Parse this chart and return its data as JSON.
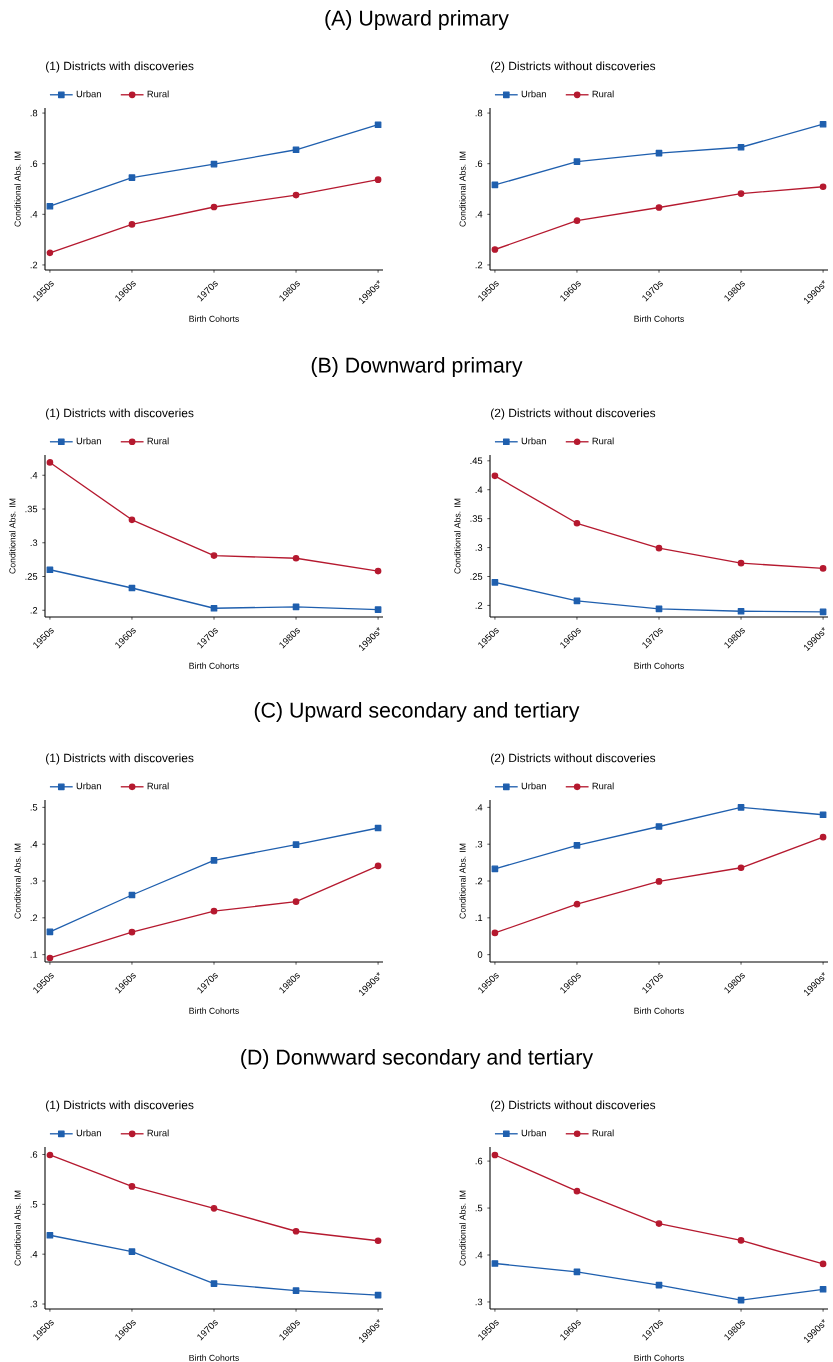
{
  "chart_data": [
    {
      "type": "line",
      "title": "(A) Upward primary",
      "subtitle": "(1) Districts with discoveries",
      "xlabel": "Birth Cohorts",
      "ylabel": "Conditional Abs. IM",
      "categories": [
        "1950s",
        "1960s",
        "1970s",
        "1980s",
        "1990s*"
      ],
      "legend": "top left",
      "ylim": [
        0.18,
        0.82
      ],
      "yticks": [
        {
          "value": 0.2,
          "label": ".2"
        },
        {
          "value": 0.4,
          "label": ".4"
        },
        {
          "value": 0.6,
          "label": ".6"
        },
        {
          "value": 0.8,
          "label": ".8"
        }
      ],
      "series": [
        {
          "name": "Urban",
          "color": "#1f5fae",
          "marker": "square",
          "values": [
            0.432,
            0.545,
            0.598,
            0.655,
            0.754
          ]
        },
        {
          "name": "Rural",
          "color": "#b5192f",
          "marker": "circle",
          "values": [
            0.248,
            0.36,
            0.429,
            0.476,
            0.537
          ]
        }
      ]
    },
    {
      "type": "line",
      "subtitle": "(2) Districts without discoveries",
      "xlabel": "Birth Cohorts",
      "ylabel": "Conditional Abs. IM",
      "categories": [
        "1950s",
        "1960s",
        "1970s",
        "1980s",
        "1990s*"
      ],
      "legend": "top left",
      "ylim": [
        0.18,
        0.82
      ],
      "yticks": [
        {
          "value": 0.2,
          "label": ".2"
        },
        {
          "value": 0.4,
          "label": ".4"
        },
        {
          "value": 0.6,
          "label": ".6"
        },
        {
          "value": 0.8,
          "label": ".8"
        }
      ],
      "series": [
        {
          "name": "Urban",
          "color": "#1f5fae",
          "marker": "square",
          "values": [
            0.516,
            0.608,
            0.642,
            0.665,
            0.756
          ]
        },
        {
          "name": "Rural",
          "color": "#b5192f",
          "marker": "circle",
          "values": [
            0.261,
            0.375,
            0.427,
            0.482,
            0.509
          ]
        }
      ]
    },
    {
      "type": "line",
      "title": "(B) Downward primary",
      "subtitle": "(1) Districts with discoveries",
      "xlabel": "Birth Cohorts",
      "ylabel": "Conditional Abs. IM",
      "categories": [
        "1950s",
        "1960s",
        "1970s",
        "1980s",
        "1990s*"
      ],
      "legend": "top left",
      "ylim": [
        0.19,
        0.43
      ],
      "yticks": [
        {
          "value": 0.2,
          "label": ".2"
        },
        {
          "value": 0.25,
          "label": ".25"
        },
        {
          "value": 0.3,
          "label": ".3"
        },
        {
          "value": 0.35,
          "label": ".35"
        },
        {
          "value": 0.4,
          "label": ".4"
        }
      ],
      "series": [
        {
          "name": "Urban",
          "color": "#1f5fae",
          "marker": "square",
          "values": [
            0.26,
            0.233,
            0.203,
            0.205,
            0.201
          ]
        },
        {
          "name": "Rural",
          "color": "#b5192f",
          "marker": "circle",
          "values": [
            0.419,
            0.334,
            0.281,
            0.277,
            0.258
          ]
        }
      ]
    },
    {
      "type": "line",
      "subtitle": "(2) Districts without discoveries",
      "xlabel": "Birth Cohorts",
      "ylabel": "Conditional Abs. IM",
      "categories": [
        "1950s",
        "1960s",
        "1970s",
        "1980s",
        "1990s*"
      ],
      "legend": "top left",
      "ylim": [
        0.18,
        0.46
      ],
      "yticks": [
        {
          "value": 0.2,
          "label": ".2"
        },
        {
          "value": 0.25,
          "label": ".25"
        },
        {
          "value": 0.3,
          "label": ".3"
        },
        {
          "value": 0.35,
          "label": ".35"
        },
        {
          "value": 0.4,
          "label": ".4"
        },
        {
          "value": 0.45,
          "label": ".45"
        }
      ],
      "series": [
        {
          "name": "Urban",
          "color": "#1f5fae",
          "marker": "square",
          "values": [
            0.24,
            0.208,
            0.194,
            0.19,
            0.189
          ]
        },
        {
          "name": "Rural",
          "color": "#b5192f",
          "marker": "circle",
          "values": [
            0.424,
            0.342,
            0.299,
            0.273,
            0.264
          ]
        }
      ]
    },
    {
      "type": "line",
      "title": "(C) Upward secondary and tertiary",
      "subtitle": "(1) Districts with discoveries",
      "xlabel": "Birth Cohorts",
      "ylabel": "Conditional Abs. IM",
      "categories": [
        "1950s",
        "1960s",
        "1970s",
        "1980s",
        "1990s*"
      ],
      "legend": "top left",
      "ylim": [
        0.08,
        0.52
      ],
      "yticks": [
        {
          "value": 0.1,
          "label": ".1"
        },
        {
          "value": 0.2,
          "label": ".2"
        },
        {
          "value": 0.3,
          "label": ".3"
        },
        {
          "value": 0.4,
          "label": ".4"
        },
        {
          "value": 0.5,
          "label": ".5"
        }
      ],
      "series": [
        {
          "name": "Urban",
          "color": "#1f5fae",
          "marker": "square",
          "values": [
            0.162,
            0.262,
            0.356,
            0.399,
            0.444
          ]
        },
        {
          "name": "Rural",
          "color": "#b5192f",
          "marker": "circle",
          "values": [
            0.091,
            0.161,
            0.218,
            0.244,
            0.341
          ]
        }
      ]
    },
    {
      "type": "line",
      "subtitle": "(2) Districts without discoveries",
      "xlabel": "Birth Cohorts",
      "ylabel": "Conditional Abs. IM",
      "categories": [
        "1950s",
        "1960s",
        "1970s",
        "1980s",
        "1990s*"
      ],
      "legend": "top left",
      "ylim": [
        -0.02,
        0.42
      ],
      "yticks": [
        0,
        {
          "value": 0.1,
          "label": ".1"
        },
        {
          "value": 0.2,
          "label": ".2"
        },
        {
          "value": 0.3,
          "label": ".3"
        },
        {
          "value": 0.4,
          "label": ".4"
        }
      ],
      "series": [
        {
          "name": "Urban",
          "color": "#1f5fae",
          "marker": "square",
          "values": [
            0.233,
            0.297,
            0.348,
            0.4,
            0.38
          ]
        },
        {
          "name": "Rural",
          "color": "#b5192f",
          "marker": "circle",
          "values": [
            0.059,
            0.137,
            0.199,
            0.236,
            0.319
          ]
        }
      ]
    },
    {
      "type": "line",
      "title": "(D) Donwward secondary and tertiary",
      "subtitle": "(1) Districts with discoveries",
      "xlabel": "Birth Cohorts",
      "ylabel": "Conditional Abs. IM",
      "categories": [
        "1950s",
        "1960s",
        "1970s",
        "1980s",
        "1990s*"
      ],
      "legend": "top left",
      "ylim": [
        0.29,
        0.615
      ],
      "yticks": [
        {
          "value": 0.3,
          "label": ".3"
        },
        {
          "value": 0.4,
          "label": ".4"
        },
        {
          "value": 0.5,
          "label": ".5"
        },
        {
          "value": 0.6,
          "label": ".6"
        }
      ],
      "series": [
        {
          "name": "Urban",
          "color": "#1f5fae",
          "marker": "square",
          "values": [
            0.438,
            0.405,
            0.341,
            0.327,
            0.318
          ]
        },
        {
          "name": "Rural",
          "color": "#b5192f",
          "marker": "circle",
          "values": [
            0.599,
            0.536,
            0.492,
            0.446,
            0.427
          ]
        }
      ]
    },
    {
      "type": "line",
      "subtitle": "(2) Districts without discoveries",
      "xlabel": "Birth Cohorts",
      "ylabel": "Conditional Abs. IM",
      "categories": [
        "1950s",
        "1960s",
        "1970s",
        "1980s",
        "1990s*"
      ],
      "legend": "top left",
      "ylim": [
        0.285,
        0.63
      ],
      "yticks": [
        {
          "value": 0.3,
          "label": ".3"
        },
        {
          "value": 0.4,
          "label": ".4"
        },
        {
          "value": 0.5,
          "label": ".5"
        },
        {
          "value": 0.6,
          "label": ".6"
        }
      ],
      "series": [
        {
          "name": "Urban",
          "color": "#1f5fae",
          "marker": "square",
          "values": [
            0.382,
            0.364,
            0.336,
            0.304,
            0.327
          ]
        },
        {
          "name": "Rural",
          "color": "#b5192f",
          "marker": "circle",
          "values": [
            0.613,
            0.536,
            0.467,
            0.431,
            0.381
          ]
        }
      ]
    }
  ]
}
